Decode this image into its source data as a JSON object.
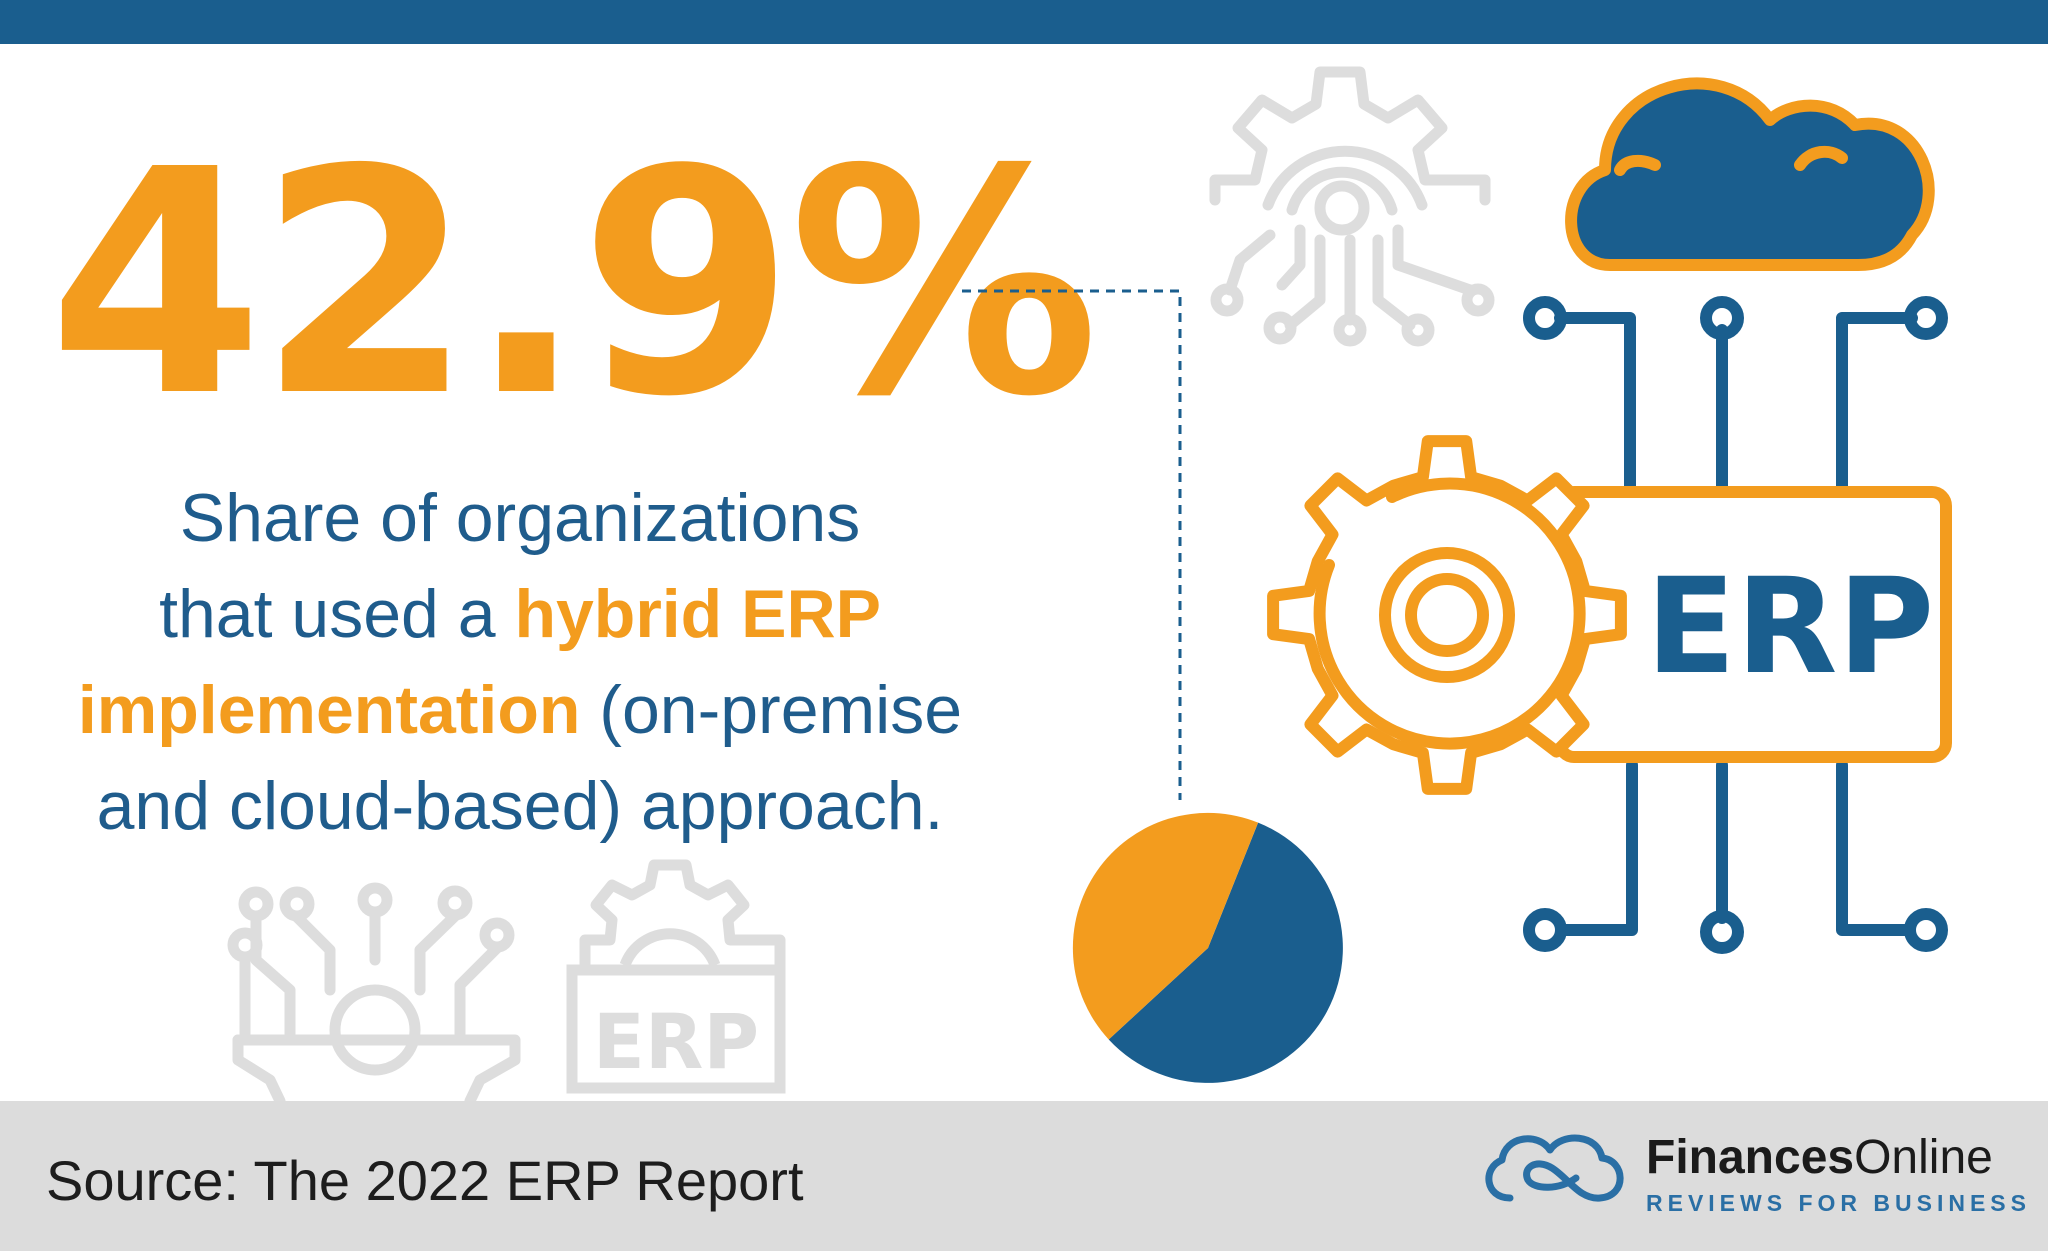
{
  "stat": {
    "value": "42.9%"
  },
  "description": {
    "line1": "Share of organizations",
    "line2_prefix": "that used a ",
    "line2_highlight": "hybrid ERP",
    "line3_highlight": "implementation",
    "line3_suffix": " (on-premise",
    "line4": "and cloud-based) approach."
  },
  "erp_icon_label": "ERP",
  "faded_erp_label": "ERP",
  "pie": {
    "share_hybrid_percent": 42.9,
    "colors": {
      "hybrid": "#f39c1e",
      "other": "#1a5e8e"
    }
  },
  "footer": {
    "source": "Source: The 2022 ERP Report",
    "brand_bold": "Finances",
    "brand_regular": "Online",
    "tagline": "REVIEWS FOR BUSINESS"
  },
  "colors": {
    "accent_orange": "#f39c1e",
    "brand_blue": "#1a5e8e",
    "faded_gray": "#dddddd",
    "footer_gray": "#dcdcdc"
  },
  "icons": [
    "gear-circuit-icon",
    "cloud-icon",
    "gear-icon",
    "erp-circuit-icon",
    "pie-chart-icon"
  ]
}
